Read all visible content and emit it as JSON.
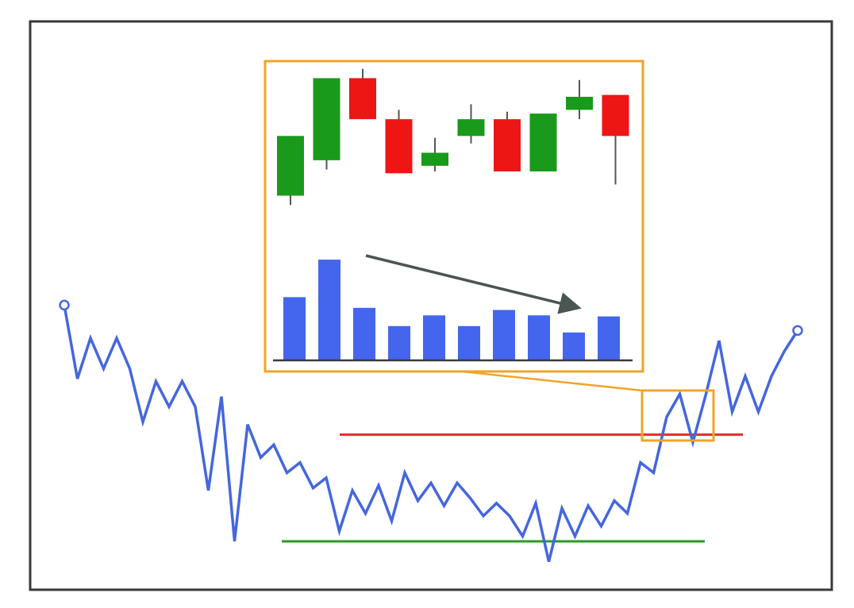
{
  "colors": {
    "frame": "#3a3a3a",
    "price_line": "#4466e0",
    "resistance": "#e8282d",
    "support": "#2a9a24",
    "zoom_box": "#f0a42a",
    "bull": "#1a9a1a",
    "bear": "#ee1515",
    "wick": "#555555",
    "volume": "#4466ee",
    "baseline": "#3a3a3a",
    "trend_arrow": "#4a5650"
  },
  "chart_data": [
    {
      "type": "line",
      "description_role": "price",
      "x": [
        0,
        1,
        2,
        3,
        4,
        5,
        6,
        7,
        8,
        9,
        10,
        11,
        12,
        13,
        14,
        15,
        16,
        17,
        18,
        19,
        20,
        21,
        22,
        23,
        24,
        25,
        26,
        27,
        28,
        29,
        30,
        31,
        32,
        33,
        34,
        35,
        36,
        37,
        38,
        39,
        40,
        41,
        42,
        43,
        44,
        45,
        46,
        47,
        48,
        49,
        50,
        51,
        52,
        53,
        54,
        55,
        56
      ],
      "y": [
        93,
        64,
        80,
        68,
        80,
        68,
        47,
        63,
        53,
        63,
        53,
        20,
        57,
        0,
        46,
        33,
        38,
        27,
        31,
        21,
        25,
        4,
        20,
        11,
        22,
        8,
        27,
        16,
        23,
        14,
        23,
        17,
        10,
        15,
        10,
        2,
        15,
        -8,
        13,
        2,
        14,
        6,
        16,
        11,
        31,
        27,
        49,
        58,
        39,
        58,
        79,
        51,
        65,
        51,
        65,
        75,
        83
      ],
      "levels": {
        "resistance": 42,
        "support": 0
      },
      "open_ends": true
    },
    {
      "type": "bar",
      "description_role": "candlestick",
      "candles": [
        {
          "open": 10,
          "close": 42,
          "high": 42,
          "low": 5,
          "direction": "up"
        },
        {
          "open": 29,
          "close": 73,
          "high": 73,
          "low": 24,
          "direction": "up"
        },
        {
          "open": 73,
          "close": 51,
          "high": 78,
          "low": 51,
          "direction": "down"
        },
        {
          "open": 51,
          "close": 22,
          "high": 56,
          "low": 22,
          "direction": "down"
        },
        {
          "open": 26,
          "close": 33,
          "high": 41,
          "low": 23,
          "direction": "up"
        },
        {
          "open": 42,
          "close": 51,
          "high": 59,
          "low": 38,
          "direction": "up"
        },
        {
          "open": 51,
          "close": 23,
          "high": 55,
          "low": 23,
          "direction": "down"
        },
        {
          "open": 23,
          "close": 54,
          "high": 54,
          "low": 23,
          "direction": "up"
        },
        {
          "open": 56,
          "close": 63,
          "high": 72,
          "low": 51,
          "direction": "up"
        },
        {
          "open": 64,
          "close": 42,
          "high": 64,
          "low": 16,
          "direction": "down"
        }
      ]
    },
    {
      "type": "bar",
      "description_role": "volume",
      "values": [
        59,
        94,
        49,
        32,
        42,
        32,
        47,
        42,
        26,
        41
      ],
      "trend": "decreasing"
    }
  ]
}
